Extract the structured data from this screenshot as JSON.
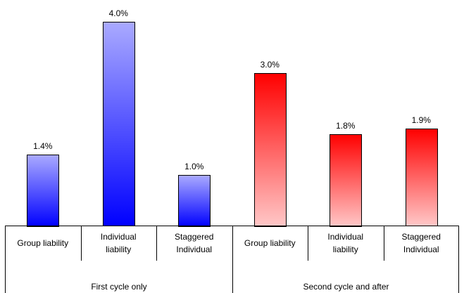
{
  "chart_data": {
    "type": "bar",
    "title": "",
    "xlabel": "",
    "ylabel": "",
    "ylim": [
      0,
      4.0
    ],
    "value_format": "percent_1dp",
    "groups": [
      {
        "label": "First cycle only",
        "color_bottom": "#0000ff",
        "color_top": "#aaaaff",
        "categories": [
          "Group liability",
          "Individual liability",
          "Staggered Individual"
        ],
        "values": [
          1.4,
          4.0,
          1.0
        ],
        "data_labels": [
          "1.4%",
          "4.0%",
          "1.0%"
        ]
      },
      {
        "label": "Second cycle and after",
        "color_bottom": "#ffc8c8",
        "color_top": "#ff0000",
        "categories": [
          "Group liability",
          "Individual liability",
          "Staggered Individual"
        ],
        "values": [
          3.0,
          1.8,
          1.9
        ],
        "data_labels": [
          "3.0%",
          "1.8%",
          "1.9%"
        ]
      }
    ],
    "legend": "none",
    "grid": false
  }
}
